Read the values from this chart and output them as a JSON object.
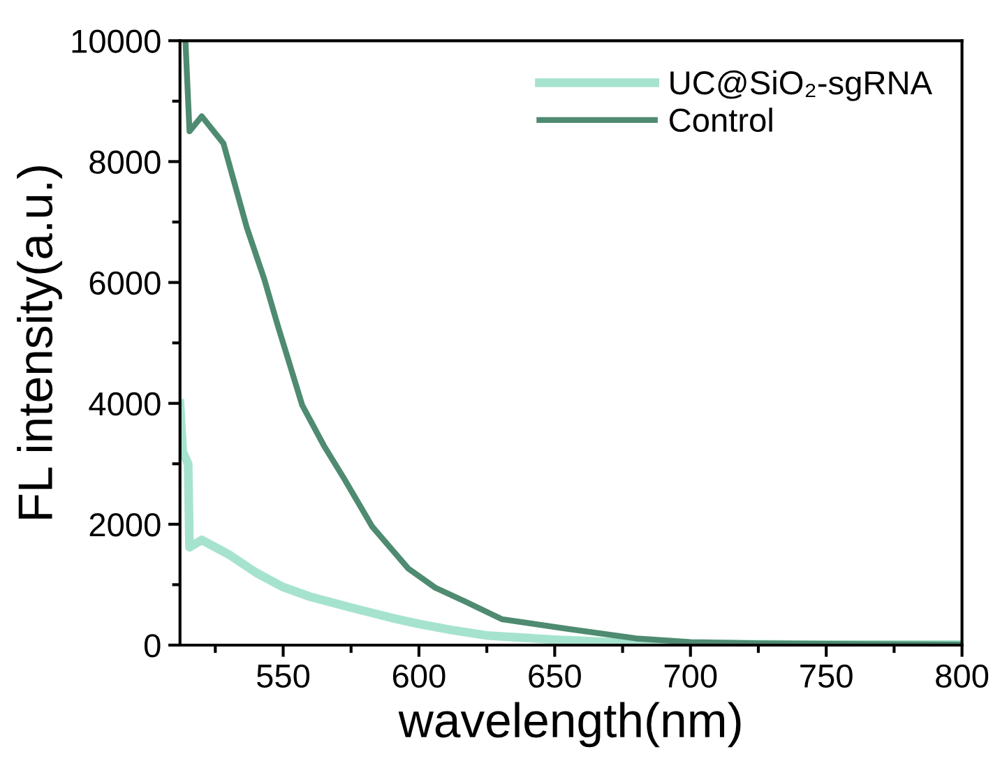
{
  "chart_data": {
    "type": "line",
    "xlabel": "wavelength(nm)",
    "ylabel": "FL intensity(a.u.)",
    "xlim": [
      512,
      800
    ],
    "ylim": [
      0,
      10000
    ],
    "xticks": [
      550,
      600,
      650,
      700,
      750,
      800
    ],
    "yticks": [
      0,
      2000,
      4000,
      6000,
      8000,
      10000
    ],
    "grid": false,
    "legend": "top right",
    "marker": "none",
    "line_style": "solid",
    "series": [
      {
        "name": "UC@SiO₂-sgRNA",
        "color": "#a6e3cf",
        "x": [
          512,
          513,
          515,
          515.5,
          520,
          530,
          540,
          550,
          560,
          575,
          590,
          600,
          612,
          625,
          650,
          675,
          700,
          750,
          800
        ],
        "values": [
          4000,
          3200,
          3000,
          1620,
          1740,
          1500,
          1200,
          960,
          800,
          620,
          450,
          350,
          250,
          160,
          90,
          40,
          20,
          10,
          10
        ]
      },
      {
        "name": "Control",
        "color": "#4e8b70",
        "x": [
          514,
          515.5,
          520,
          528,
          536.6,
          543,
          548,
          557,
          565,
          572.5,
          582.8,
          596,
          606,
          616.6,
          630.5,
          654.6,
          680,
          700,
          725,
          750,
          800
        ],
        "values": [
          10000,
          8500,
          8750,
          8300,
          6910,
          6060,
          5290,
          3970,
          3300,
          2750,
          1960,
          1270,
          950,
          730,
          430,
          270,
          110,
          50,
          30,
          20,
          10
        ]
      }
    ]
  }
}
